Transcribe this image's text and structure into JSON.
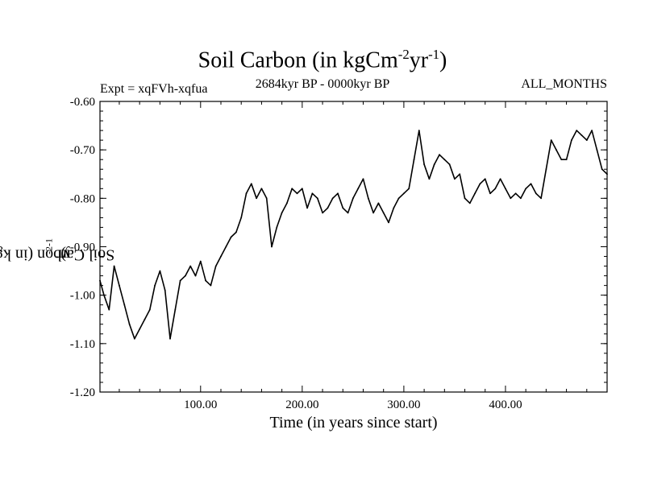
{
  "chart_data": {
    "type": "line",
    "title": "Soil Carbon (in kgCm",
    "title_exp1": "-2",
    "title_mid": "yr",
    "title_exp2": "-1",
    "title_end": ")",
    "subtitle": "2684kyr BP - 0000kyr BP",
    "expt_label": "Expt = xqFVh-xqfua",
    "months_label": "ALL_MONTHS",
    "xlabel": "Time (in years since start)",
    "ylabel": "Soil Carbon (in kgCm",
    "ylabel_exp1": "-2",
    "ylabel_mid": "yr",
    "ylabel_exp2": "-1",
    "ylabel_end": ")",
    "xlim": [
      1,
      500
    ],
    "ylim": [
      -1.2,
      -0.6
    ],
    "xticks": [
      100,
      200,
      300,
      400
    ],
    "xtick_labels": [
      "100.00",
      "200.00",
      "300.00",
      "400.00"
    ],
    "yticks": [
      -0.6,
      -0.7,
      -0.8,
      -0.9,
      -1.0,
      -1.1,
      -1.2
    ],
    "ytick_labels": [
      "-0.60",
      "-0.70",
      "-0.80",
      "-0.90",
      "-1.00",
      "-1.10",
      "-1.20"
    ],
    "series": [
      {
        "name": "Soil Carbon",
        "color": "#000000",
        "x": [
          1,
          5,
          10,
          15,
          20,
          25,
          30,
          35,
          40,
          45,
          50,
          55,
          60,
          65,
          70,
          75,
          80,
          85,
          90,
          95,
          100,
          105,
          110,
          115,
          120,
          125,
          130,
          135,
          140,
          145,
          150,
          155,
          160,
          165,
          170,
          175,
          180,
          185,
          190,
          195,
          200,
          205,
          210,
          215,
          220,
          225,
          230,
          235,
          240,
          245,
          250,
          255,
          260,
          265,
          270,
          275,
          280,
          285,
          290,
          295,
          300,
          305,
          310,
          315,
          320,
          325,
          330,
          335,
          340,
          345,
          350,
          355,
          360,
          365,
          370,
          375,
          380,
          385,
          390,
          395,
          400,
          405,
          410,
          415,
          420,
          425,
          430,
          435,
          440,
          445,
          450,
          455,
          460,
          465,
          470,
          475,
          480,
          485,
          490,
          495,
          500
        ],
        "values": [
          -0.97,
          -1.0,
          -1.03,
          -0.94,
          -0.98,
          -1.02,
          -1.06,
          -1.09,
          -1.07,
          -1.05,
          -1.03,
          -0.98,
          -0.95,
          -0.99,
          -1.09,
          -1.03,
          -0.97,
          -0.96,
          -0.94,
          -0.96,
          -0.93,
          -0.97,
          -0.98,
          -0.94,
          -0.92,
          -0.9,
          -0.88,
          -0.87,
          -0.84,
          -0.79,
          -0.77,
          -0.8,
          -0.78,
          -0.8,
          -0.9,
          -0.86,
          -0.83,
          -0.81,
          -0.78,
          -0.79,
          -0.78,
          -0.82,
          -0.79,
          -0.8,
          -0.83,
          -0.82,
          -0.8,
          -0.79,
          -0.82,
          -0.83,
          -0.8,
          -0.78,
          -0.76,
          -0.8,
          -0.83,
          -0.81,
          -0.83,
          -0.85,
          -0.82,
          -0.8,
          -0.79,
          -0.78,
          -0.72,
          -0.66,
          -0.73,
          -0.76,
          -0.73,
          -0.71,
          -0.72,
          -0.73,
          -0.76,
          -0.75,
          -0.8,
          -0.81,
          -0.79,
          -0.77,
          -0.76,
          -0.79,
          -0.78,
          -0.76,
          -0.78,
          -0.8,
          -0.79,
          -0.8,
          -0.78,
          -0.77,
          -0.79,
          -0.8,
          -0.74,
          -0.68,
          -0.7,
          -0.72,
          -0.72,
          -0.68,
          -0.66,
          -0.67,
          -0.68,
          -0.66,
          -0.7,
          -0.74,
          -0.75
        ]
      }
    ]
  }
}
